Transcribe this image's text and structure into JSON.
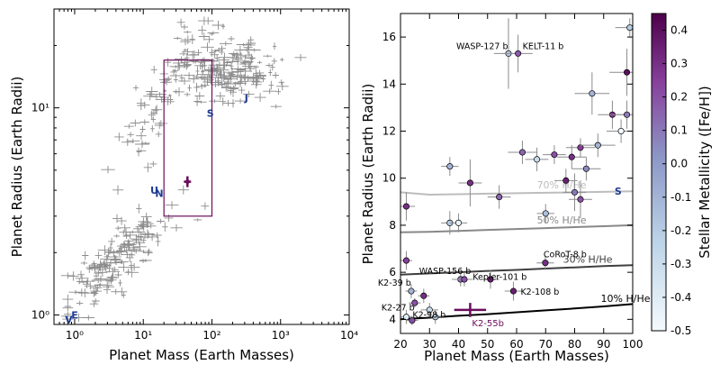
{
  "colors": {
    "background": "#ffffff",
    "error_bars": "#8c8c8c",
    "highlight": "#6a0d5b",
    "solar_system": "#1f3a93",
    "cmap_low": "#f4fafd",
    "cmap_mid": "#8c96c6",
    "cmap_high": "#4d004b",
    "models": [
      "#bdbdbd",
      "#888888",
      "#3f3f3f",
      "#000000"
    ]
  },
  "chart_data": [
    {
      "type": "scatter",
      "xlabel": "Planet Mass (Earth Masses)",
      "ylabel": "Planet Radius (Earth Radii)",
      "xscale": "log",
      "yscale": "log",
      "xlim": [
        0.5,
        10000
      ],
      "ylim": [
        0.9,
        30
      ],
      "xticks": [
        {
          "v": 1,
          "label": "10⁰"
        },
        {
          "v": 10,
          "label": "10¹"
        },
        {
          "v": 100,
          "label": "10²"
        },
        {
          "v": 1000,
          "label": "10³"
        },
        {
          "v": 10000,
          "label": "10⁴"
        }
      ],
      "yticks": [
        {
          "v": 1,
          "label": "10⁰"
        },
        {
          "v": 10,
          "label": "10¹"
        }
      ],
      "highlight": {
        "mass": 44,
        "radius": 4.4
      },
      "zoom_box": {
        "xmin": 20,
        "xmax": 100,
        "ymin": 3.0,
        "ymax": 17.0
      },
      "solar_system": [
        {
          "label": "V",
          "mass": 0.82,
          "radius": 0.95
        },
        {
          "label": "E",
          "mass": 1.0,
          "radius": 1.0
        },
        {
          "label": "U",
          "mass": 14.5,
          "radius": 4.0
        },
        {
          "label": "N",
          "mass": 17.1,
          "radius": 3.86
        },
        {
          "label": "S",
          "mass": 95,
          "radius": 9.45
        },
        {
          "label": "J",
          "mass": 318,
          "radius": 11.2
        }
      ]
    },
    {
      "type": "scatter",
      "xlabel": "Planet Mass (Earth Masses)",
      "ylabel": "Planet Radius (Earth Radii)",
      "xlim": [
        20,
        100
      ],
      "ylim": [
        3.4,
        17
      ],
      "xticks": [
        20,
        30,
        40,
        50,
        60,
        70,
        80,
        90,
        100
      ],
      "yticks": [
        4,
        6,
        8,
        10,
        12,
        14,
        16
      ],
      "colorbar": {
        "label": "Stellar Metallicity ([Fe/H])",
        "min": -0.5,
        "max": 0.45,
        "ticks": [
          -0.5,
          -0.4,
          -0.3,
          -0.2,
          -0.1,
          0.0,
          0.1,
          0.2,
          0.3,
          0.4
        ]
      },
      "models": [
        {
          "name": "70% H/He",
          "x": [
            20,
            30,
            40,
            50,
            60,
            70,
            80,
            90,
            100
          ],
          "y": [
            9.4,
            9.3,
            9.32,
            9.34,
            9.36,
            9.38,
            9.4,
            9.42,
            9.44
          ]
        },
        {
          "name": "50% H/He",
          "x": [
            20,
            30,
            40,
            50,
            60,
            70,
            80,
            90,
            100
          ],
          "y": [
            7.7,
            7.72,
            7.76,
            7.8,
            7.84,
            7.88,
            7.92,
            7.96,
            8.0
          ]
        },
        {
          "name": "30% H/He",
          "x": [
            20,
            30,
            40,
            50,
            60,
            70,
            80,
            90,
            100
          ],
          "y": [
            5.9,
            5.95,
            6.0,
            6.06,
            6.1,
            6.16,
            6.21,
            6.26,
            6.3
          ]
        },
        {
          "name": "10% H/He",
          "x": [
            20,
            30,
            40,
            50,
            60,
            70,
            80,
            90,
            100
          ],
          "y": [
            4.0,
            4.07,
            4.15,
            4.22,
            4.3,
            4.38,
            4.46,
            4.55,
            4.65
          ]
        }
      ],
      "saturn": {
        "label": "S",
        "mass": 95,
        "radius": 9.45
      },
      "target": {
        "label": "K2-55b",
        "mass": 44,
        "radius": 4.4,
        "mass_err": 5.5,
        "radius_err": 0.3
      },
      "annotations": [
        {
          "label": "WASP-127 b",
          "mass": 57.2,
          "radius": 15.3
        },
        {
          "label": "KELT-11 b",
          "mass": 60.5,
          "radius": 15.3
        },
        {
          "label": "CoRoT-8 b",
          "mass": 69.9,
          "radius": 6.4
        },
        {
          "label": "WASP-156 b",
          "mass": 40.7,
          "radius": 5.7
        },
        {
          "label": "K2-108 b",
          "mass": 58.9,
          "radius": 5.2
        },
        {
          "label": "K2-39 b",
          "mass": 23.7,
          "radius": 5.2
        },
        {
          "label": "K2-27 b",
          "mass": 24.9,
          "radius": 4.5
        },
        {
          "label": "Kepler-101 b",
          "mass": 51.1,
          "radius": 5.8
        },
        {
          "label": "K2-98 b",
          "mass": 32.2,
          "radius": 4.3
        }
      ],
      "planets": [
        {
          "mass": 57.2,
          "radius": 15.3,
          "xe": 5,
          "ye": 1.5,
          "feh": -0.18
        },
        {
          "mass": 60.5,
          "radius": 15.3,
          "xe": 5,
          "ye": 0.8,
          "feh": 0.18
        },
        {
          "mass": 99,
          "radius": 16.4,
          "xe": 5,
          "ye": 0.4,
          "feh": -0.2
        },
        {
          "mass": 98,
          "radius": 14.5,
          "xe": 6,
          "ye": 1.0,
          "feh": 0.4
        },
        {
          "mass": 86,
          "radius": 13.6,
          "xe": 6,
          "ye": 0.9,
          "feh": -0.1
        },
        {
          "mass": 93,
          "radius": 12.7,
          "xe": 5,
          "ye": 0.6,
          "feh": 0.3
        },
        {
          "mass": 98,
          "radius": 12.7,
          "xe": 6,
          "ye": 0.6,
          "feh": 0.1
        },
        {
          "mass": 96,
          "radius": 12.0,
          "xe": 5,
          "ye": 0.5,
          "feh": -0.5
        },
        {
          "mass": 62,
          "radius": 11.1,
          "xe": 5,
          "ye": 0.5,
          "feh": 0.15
        },
        {
          "mass": 67,
          "radius": 10.8,
          "xe": 4,
          "ye": 0.5,
          "feh": -0.3
        },
        {
          "mass": 73,
          "radius": 11.0,
          "xe": 4,
          "ye": 0.4,
          "feh": 0.2
        },
        {
          "mass": 82,
          "radius": 11.3,
          "xe": 5,
          "ye": 0.4,
          "feh": 0.25
        },
        {
          "mass": 88,
          "radius": 11.4,
          "xe": 6,
          "ye": 0.5,
          "feh": -0.1
        },
        {
          "mass": 79,
          "radius": 10.9,
          "xe": 5,
          "ye": 0.5,
          "feh": 0.3
        },
        {
          "mass": 84,
          "radius": 10.4,
          "xe": 5,
          "ye": 0.5,
          "feh": 0.05
        },
        {
          "mass": 37,
          "radius": 10.5,
          "xe": 3,
          "ye": 0.4,
          "feh": -0.1
        },
        {
          "mass": 44,
          "radius": 9.8,
          "xe": 4,
          "ye": 1.0,
          "feh": 0.3
        },
        {
          "mass": 77,
          "radius": 9.9,
          "xe": 4,
          "ye": 0.5,
          "feh": 0.35
        },
        {
          "mass": 80,
          "radius": 9.4,
          "xe": 4,
          "ye": 0.8,
          "feh": 0.1
        },
        {
          "mass": 82,
          "radius": 9.1,
          "xe": 4,
          "ye": 0.8,
          "feh": 0.2
        },
        {
          "mass": 54,
          "radius": 9.2,
          "xe": 4,
          "ye": 0.5,
          "feh": 0.15
        },
        {
          "mass": 22,
          "radius": 8.8,
          "xe": 3,
          "ye": 0.6,
          "feh": 0.3
        },
        {
          "mass": 70,
          "radius": 8.5,
          "xe": 3,
          "ye": 0.4,
          "feh": -0.15
        },
        {
          "mass": 37,
          "radius": 8.1,
          "xe": 3,
          "ye": 0.5,
          "feh": -0.2
        },
        {
          "mass": 40,
          "radius": 8.1,
          "xe": 3,
          "ye": 0.4,
          "feh": -0.45
        },
        {
          "mass": 22,
          "radius": 6.5,
          "xe": 2,
          "ye": 0.4,
          "feh": 0.25
        },
        {
          "mass": 69.9,
          "radius": 6.4,
          "xe": 3,
          "ye": 0.3,
          "feh": 0.3
        },
        {
          "mass": 40.7,
          "radius": 5.7,
          "xe": 3,
          "ye": 0.3,
          "feh": 0.1
        },
        {
          "mass": 42,
          "radius": 5.7,
          "xe": 3,
          "ye": 0.3,
          "feh": 0.2
        },
        {
          "mass": 51,
          "radius": 5.7,
          "xe": 3,
          "ye": 0.4,
          "feh": 0.35
        },
        {
          "mass": 58.9,
          "radius": 5.2,
          "xe": 3,
          "ye": 0.4,
          "feh": 0.35
        },
        {
          "mass": 23.7,
          "radius": 5.2,
          "xe": 2,
          "ye": 0.3,
          "feh": -0.1
        },
        {
          "mass": 28,
          "radius": 5.0,
          "xe": 2,
          "ye": 0.3,
          "feh": 0.3
        },
        {
          "mass": 24.9,
          "radius": 4.7,
          "xe": 2,
          "ye": 0.2,
          "feh": 0.2
        },
        {
          "mass": 30,
          "radius": 4.4,
          "xe": 3,
          "ye": 0.3,
          "feh": -0.3
        },
        {
          "mass": 32,
          "radius": 4.1,
          "xe": 3,
          "ye": 0.3,
          "feh": -0.2
        },
        {
          "mass": 22,
          "radius": 4.1,
          "xe": 2,
          "ye": 0.3,
          "feh": -0.4
        },
        {
          "mass": 24,
          "radius": 3.95,
          "xe": 2,
          "ye": 0.2,
          "feh": 0.2
        }
      ]
    }
  ]
}
